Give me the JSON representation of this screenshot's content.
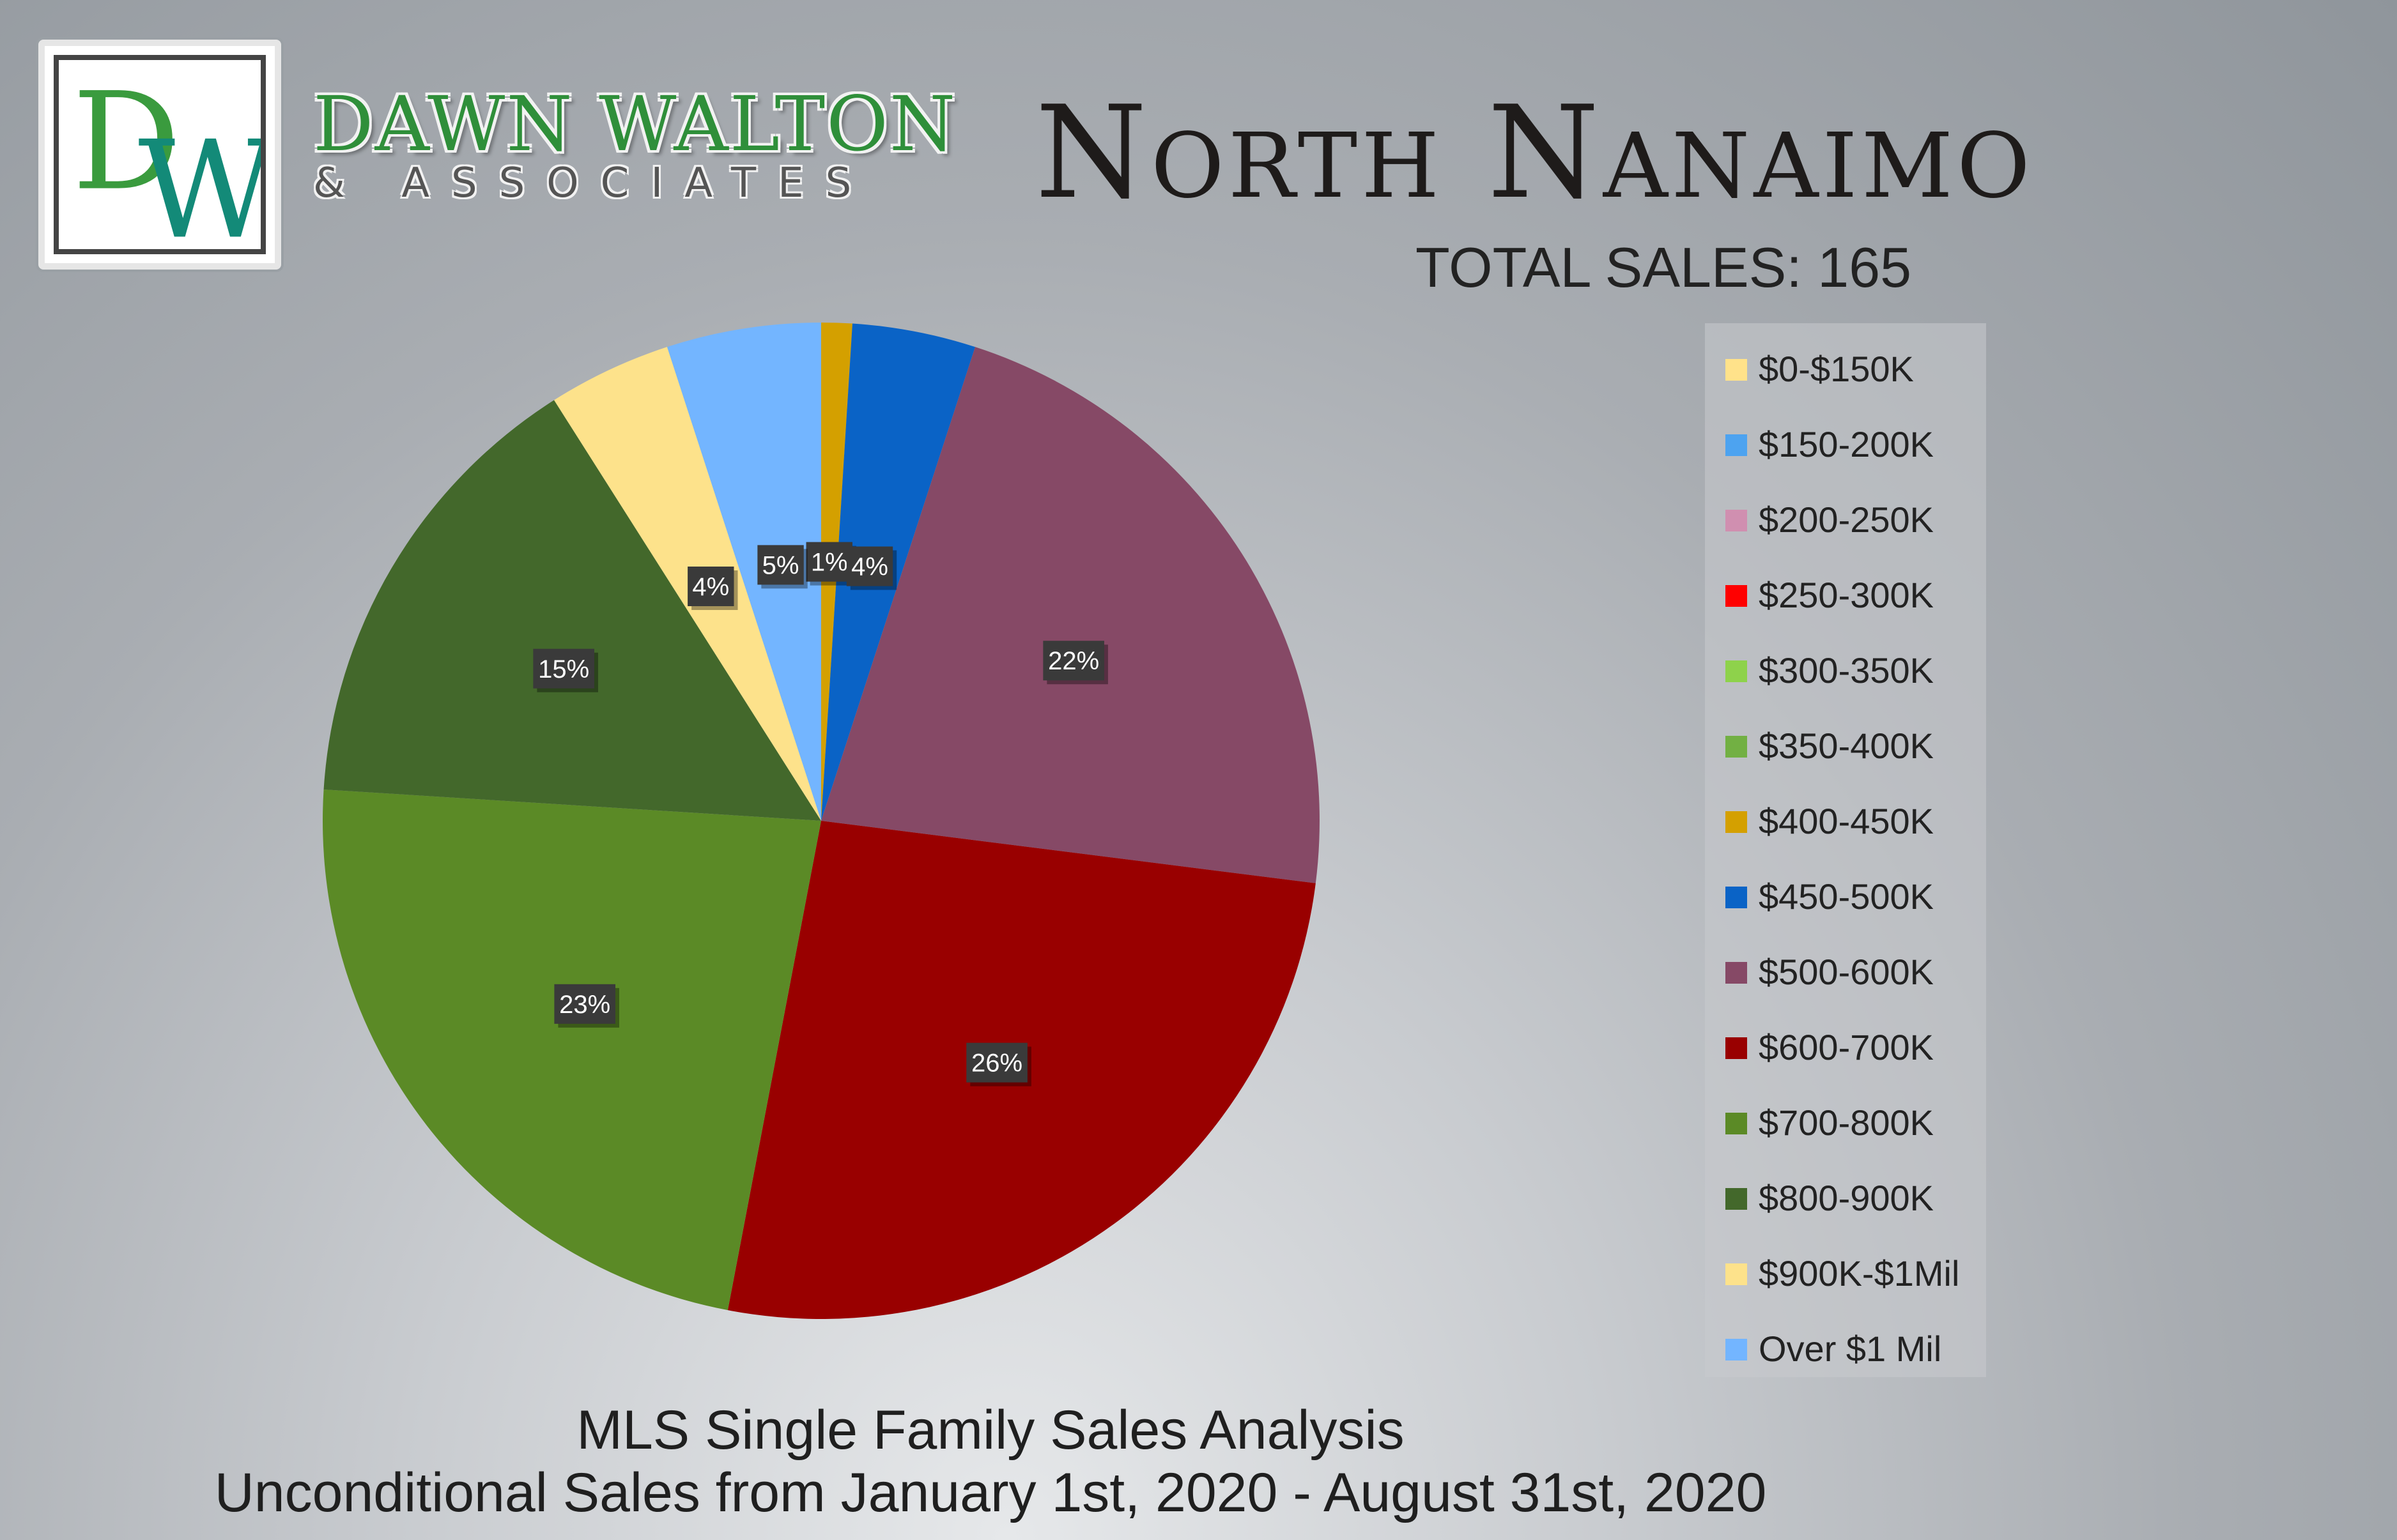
{
  "logo": {
    "monogram": "DW"
  },
  "brand": {
    "name": "DAWN WALTON",
    "sub": "& ASSOCIATES"
  },
  "title": "North Nanaimo",
  "total_sales_label": "TOTAL SALES: 165",
  "footer": {
    "line1": "MLS Single Family Sales Analysis",
    "line2": "Unconditional Sales from January 1st, 2020 - August 31st, 2020"
  },
  "chart_data": {
    "type": "pie",
    "title": "North Nanaimo",
    "legend_position": "right",
    "slices": [
      {
        "label": "$0-$150K",
        "value": 0,
        "color": "#ffe28a"
      },
      {
        "label": "$150-200K",
        "value": 0,
        "color": "#4da3f0"
      },
      {
        "label": "$200-250K",
        "value": 0,
        "color": "#d08fb0"
      },
      {
        "label": "$250-300K",
        "value": 0,
        "color": "#ff0000"
      },
      {
        "label": "$300-350K",
        "value": 0,
        "color": "#8ed24b"
      },
      {
        "label": "$350-400K",
        "value": 0,
        "color": "#72b043"
      },
      {
        "label": "$400-450K",
        "value": 1,
        "display": "1%",
        "color": "#d4a000"
      },
      {
        "label": "$450-500K",
        "value": 4,
        "display": "4%",
        "color": "#0a63c6"
      },
      {
        "label": "$500-600K",
        "value": 22,
        "display": "22%",
        "color": "#864966"
      },
      {
        "label": "$600-700K",
        "value": 26,
        "display": "26%",
        "color": "#990000"
      },
      {
        "label": "$700-800K",
        "value": 23,
        "display": "23%",
        "color": "#5b8a26"
      },
      {
        "label": "$800-900K",
        "value": 15,
        "display": "15%",
        "color": "#43682b"
      },
      {
        "label": "$900K-$1Mil",
        "value": 4,
        "display": "4%",
        "color": "#fde28b"
      },
      {
        "label": "Over $1 Mil",
        "value": 5,
        "display": "5%",
        "color": "#73b5ff"
      }
    ]
  }
}
